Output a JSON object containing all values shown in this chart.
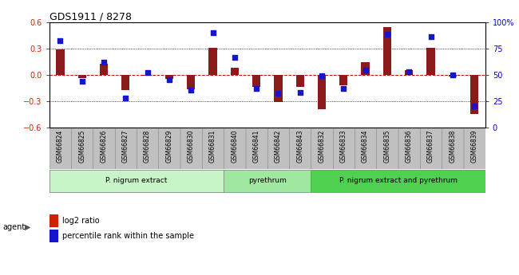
{
  "title": "GDS1911 / 8278",
  "samples": [
    "GSM66824",
    "GSM66825",
    "GSM66826",
    "GSM66827",
    "GSM66828",
    "GSM66829",
    "GSM66830",
    "GSM66831",
    "GSM66840",
    "GSM66841",
    "GSM66842",
    "GSM66843",
    "GSM66832",
    "GSM66833",
    "GSM66834",
    "GSM66835",
    "GSM66836",
    "GSM66837",
    "GSM66838",
    "GSM66839"
  ],
  "log2_ratio": [
    0.29,
    -0.04,
    0.12,
    -0.18,
    -0.01,
    -0.05,
    -0.17,
    0.31,
    0.08,
    -0.14,
    -0.31,
    -0.14,
    -0.39,
    -0.12,
    0.14,
    0.54,
    0.05,
    0.31,
    -0.02,
    -0.45
  ],
  "percentile": [
    82,
    44,
    62,
    28,
    52,
    45,
    35,
    90,
    66,
    37,
    32,
    33,
    49,
    37,
    54,
    88,
    53,
    86,
    50,
    20
  ],
  "groups": [
    {
      "label": "P. nigrum extract",
      "start": 0,
      "end": 8,
      "color": "#c8f5c8"
    },
    {
      "label": "pyrethrum",
      "start": 8,
      "end": 12,
      "color": "#a0e8a0"
    },
    {
      "label": "P. nigrum extract and pyrethrum",
      "start": 12,
      "end": 20,
      "color": "#50d050"
    }
  ],
  "ylim_left": [
    -0.6,
    0.6
  ],
  "ylim_right": [
    0,
    100
  ],
  "yticks_left": [
    -0.6,
    -0.3,
    0.0,
    0.3,
    0.6
  ],
  "yticks_right": [
    0,
    25,
    50,
    75,
    100
  ],
  "ytick_labels_right": [
    "0",
    "25",
    "50",
    "75",
    "100%"
  ],
  "bar_color": "#8B1A1A",
  "dot_color": "#1515CD",
  "dot_size": 18,
  "bar_width": 0.38,
  "legend_items": [
    "log2 ratio",
    "percentile rank within the sample"
  ],
  "legend_colors": [
    "#cc2200",
    "#1515CD"
  ],
  "agent_label": "agent",
  "tick_label_color_left": "#cc2200",
  "tick_label_color_right": "#0000cc",
  "hline_color": "#cc0000",
  "dotline_color": "black",
  "xticklabel_bg": "#c0c0c0",
  "xticklabel_border": "#888888"
}
